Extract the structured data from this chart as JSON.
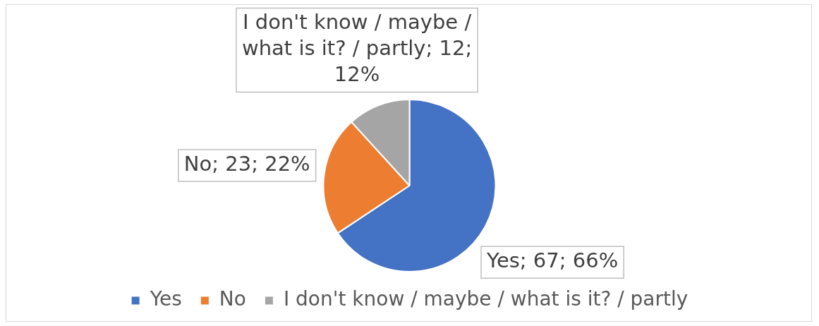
{
  "chart_data": {
    "type": "pie",
    "categories": [
      "Yes",
      "No",
      "I don't know / maybe / what is it? / partly"
    ],
    "values": [
      67,
      23,
      12
    ],
    "colors": [
      "#4472c4",
      "#ed7d31",
      "#a5a5a5"
    ],
    "value_labels": [
      "Yes; 67; 66%",
      "No; 23; 22%",
      "I don't know / maybe / what is it? / partly; 12; 12%"
    ],
    "legend": "bottom"
  }
}
